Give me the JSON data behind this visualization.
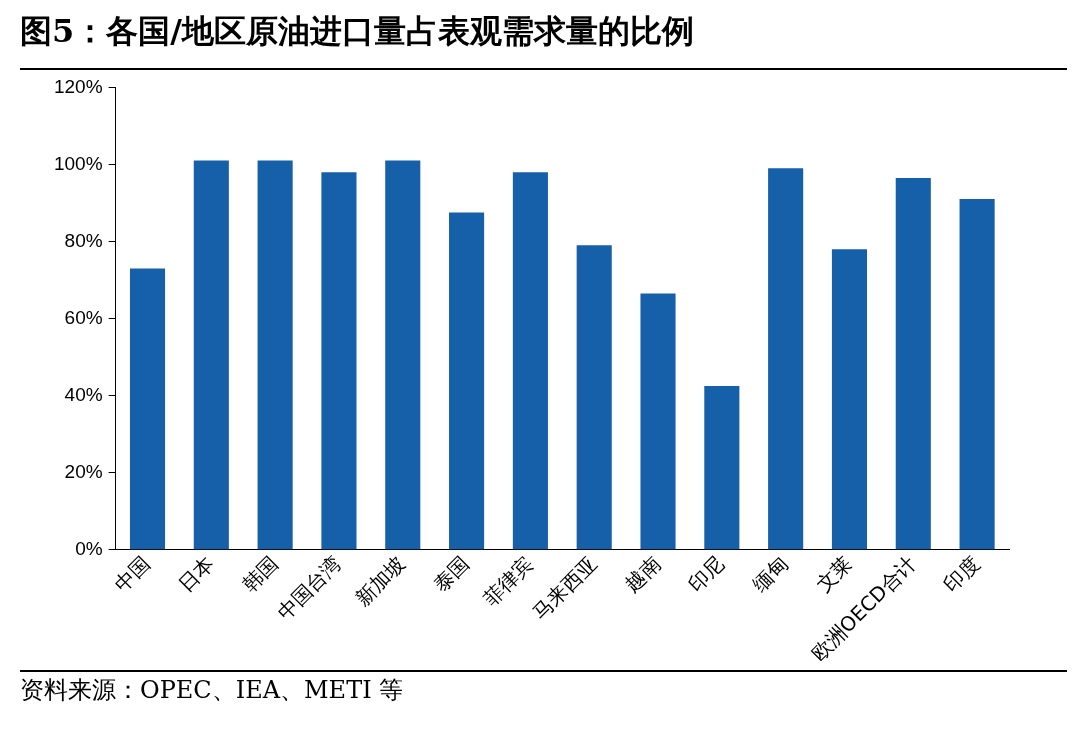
{
  "chart_data": {
    "type": "bar",
    "title": "图5：各国/地区原油进口量占表观需求量的比例",
    "categories": [
      "中国",
      "日本",
      "韩国",
      "中国台湾",
      "新加坡",
      "泰国",
      "菲律宾",
      "马来西亚",
      "越南",
      "印尼",
      "缅甸",
      "文莱",
      "欧洲OECD合计",
      "印度"
    ],
    "values": [
      73,
      101,
      101,
      98,
      101,
      87.5,
      98,
      79,
      66.5,
      42.5,
      99,
      78,
      96.5,
      91
    ],
    "color": "#1560a8",
    "ylim": [
      0,
      120
    ],
    "yticks": [
      {
        "value": 0,
        "label": "0%"
      },
      {
        "value": 20,
        "label": "20%"
      },
      {
        "value": 40,
        "label": "40%"
      },
      {
        "value": 60,
        "label": "60%"
      },
      {
        "value": 80,
        "label": "80%"
      },
      {
        "value": 100,
        "label": "100%"
      },
      {
        "value": 120,
        "label": "120%"
      }
    ],
    "grid": false,
    "legend": false,
    "annotations": [
      "资料来源：OPEC、IEA、METI 等"
    ]
  }
}
